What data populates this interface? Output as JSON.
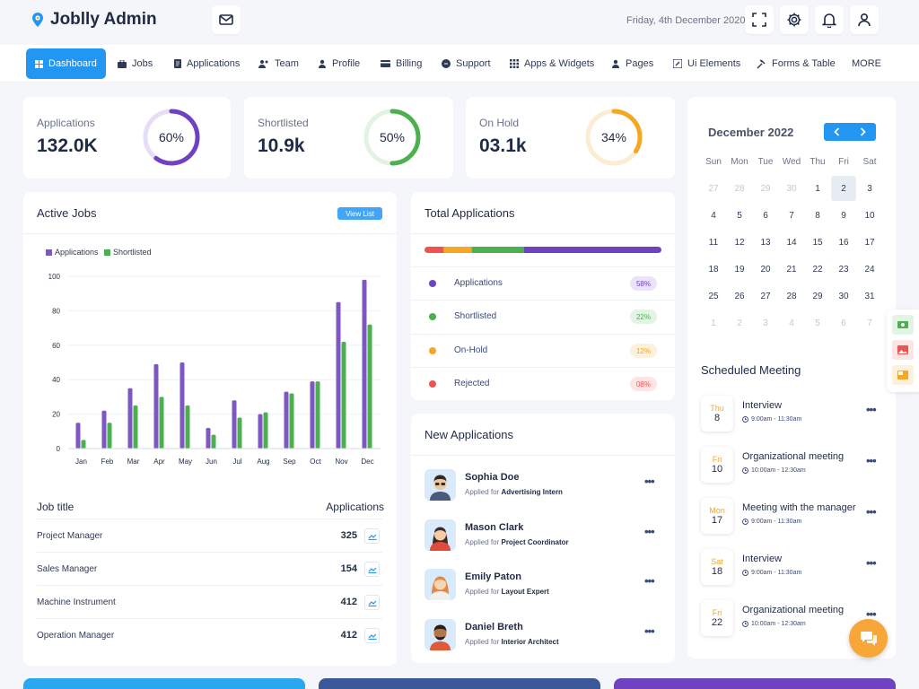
{
  "app": {
    "title": "Joblly Admin",
    "date": "Friday, 4th December 2020"
  },
  "icons": {
    "logo": "location-pin-icon",
    "mail": "mail-icon",
    "fullscreen": "fullscreen-icon",
    "settings": "gear-icon",
    "notifications": "bell-icon",
    "profile": "user-icon"
  },
  "nav": {
    "items": [
      {
        "label": "Dashboard",
        "icon": "dashboard-icon"
      },
      {
        "label": "Jobs",
        "icon": "briefcase-icon"
      },
      {
        "label": "Applications",
        "icon": "document-icon"
      },
      {
        "label": "Team",
        "icon": "team-icon"
      },
      {
        "label": "Profile",
        "icon": "user-icon"
      },
      {
        "label": "Billing",
        "icon": "card-icon"
      },
      {
        "label": "Support",
        "icon": "chat-icon"
      },
      {
        "label": "Apps & Widgets",
        "icon": "grid-icon"
      },
      {
        "label": "Pages",
        "icon": "user-icon"
      },
      {
        "label": "Ui Elements",
        "icon": "pencil-icon"
      },
      {
        "label": "Forms & Table",
        "icon": "tools-icon"
      },
      {
        "label": "MORE",
        "icon": ""
      }
    ],
    "active": 0
  },
  "stats": [
    {
      "label": "Applications",
      "value": "132.0K",
      "percent_label": "60%",
      "percent": 60,
      "color": "#6f42c1",
      "track": "#e6ddf6"
    },
    {
      "label": "Shortlisted",
      "value": "10.9k",
      "percent_label": "50%",
      "percent": 50,
      "color": "#4caf50",
      "track": "#e2f3e3"
    },
    {
      "label": "On Hold",
      "value": "03.1k",
      "percent_label": "34%",
      "percent": 34,
      "color": "#f5a623",
      "track": "#fcecd2"
    }
  ],
  "active_jobs": {
    "title": "Active Jobs",
    "view_label": "View List",
    "table_headers": {
      "title": "Job title",
      "applications": "Applications"
    },
    "rows": [
      {
        "title": "Project Manager",
        "applications": "325"
      },
      {
        "title": "Sales Manager",
        "applications": "154"
      },
      {
        "title": "Machine Instrument",
        "applications": "412"
      },
      {
        "title": "Operation Manager",
        "applications": "412"
      }
    ]
  },
  "chart_data": {
    "type": "bar",
    "categories": [
      "Jan",
      "Feb",
      "Mar",
      "Apr",
      "May",
      "Jun",
      "Jul",
      "Aug",
      "Sep",
      "Oct",
      "Nov",
      "Dec"
    ],
    "series": [
      {
        "name": "Applications",
        "color": "#7e57c2",
        "values": [
          15,
          22,
          35,
          49,
          50,
          12,
          28,
          20,
          33,
          39,
          85,
          98
        ]
      },
      {
        "name": "Shortlisted",
        "color": "#4caf50",
        "values": [
          5,
          15,
          25,
          30,
          25,
          8,
          18,
          21,
          32,
          39,
          62,
          72
        ]
      }
    ],
    "yticks": [
      "0",
      "20",
      "40",
      "60",
      "80",
      "100"
    ],
    "ylim": [
      0,
      100
    ],
    "grid": true,
    "legend": "top-left"
  },
  "total_applications": {
    "title": "Total Applications",
    "segments": [
      {
        "color": "#ef5350",
        "fraction": 0.08
      },
      {
        "color": "#f5a623",
        "fraction": 0.12
      },
      {
        "color": "#4caf50",
        "fraction": 0.22
      },
      {
        "color": "#6f42c1",
        "fraction": 0.58
      }
    ],
    "rows": [
      {
        "label": "Applications",
        "pct": "58%",
        "color": "#6f42c1",
        "bg": "#ece3fa",
        "fg": "#6f42c1"
      },
      {
        "label": "Shortlisted",
        "pct": "22%",
        "color": "#4caf50",
        "bg": "#e3f4e4",
        "fg": "#4caf50"
      },
      {
        "label": "On-Hold",
        "pct": "12%",
        "color": "#f5a623",
        "bg": "#fdf0dc",
        "fg": "#f5a623"
      },
      {
        "label": "Rejected",
        "pct": "08%",
        "color": "#ef5350",
        "bg": "#fde5e5",
        "fg": "#ef5350"
      }
    ]
  },
  "new_applications": {
    "title": "New Applications",
    "applied_for": "Applied for",
    "items": [
      {
        "name": "Sophia Doe",
        "role": "Advertising Intern"
      },
      {
        "name": "Mason Clark",
        "role": "Project Coordinator"
      },
      {
        "name": "Emily Paton",
        "role": "Layout Expert"
      },
      {
        "name": "Daniel Breth",
        "role": "Interior Architect"
      }
    ]
  },
  "calendar": {
    "title": "December 2022",
    "weekdays": [
      "Sun",
      "Mon",
      "Tue",
      "Wed",
      "Thu",
      "Fri",
      "Sat"
    ],
    "weeks": [
      [
        "27",
        "28",
        "29",
        "30",
        "1",
        "2",
        "3"
      ],
      [
        "4",
        "5",
        "6",
        "7",
        "8",
        "9",
        "10"
      ],
      [
        "11",
        "12",
        "13",
        "14",
        "15",
        "16",
        "17"
      ],
      [
        "18",
        "19",
        "20",
        "21",
        "22",
        "23",
        "24"
      ],
      [
        "25",
        "26",
        "27",
        "28",
        "29",
        "30",
        "31"
      ],
      [
        "1",
        "2",
        "3",
        "4",
        "5",
        "6",
        "7"
      ]
    ],
    "today": "2"
  },
  "meetings": {
    "title": "Scheduled Meeting",
    "items": [
      {
        "dow": "Thu",
        "day": "8",
        "title": "Interview",
        "time": "9:00am - 11:30am"
      },
      {
        "dow": "Fri",
        "day": "10",
        "title": "Organizational meeting",
        "time": "10:00am - 12:30am"
      },
      {
        "dow": "Mon",
        "day": "17",
        "title": "Meeting with the manager",
        "time": "9:00am - 11:30am"
      },
      {
        "dow": "Sat",
        "day": "18",
        "title": "Interview",
        "time": "9:00am - 11:30am"
      },
      {
        "dow": "Fri",
        "day": "22",
        "title": "Organizational meeting",
        "time": "10:00am - 12:30am"
      }
    ]
  },
  "bottom_cards": [
    {
      "color": "#29a8f0"
    },
    {
      "color": "#3b5998"
    },
    {
      "color": "#6f42c1"
    }
  ]
}
